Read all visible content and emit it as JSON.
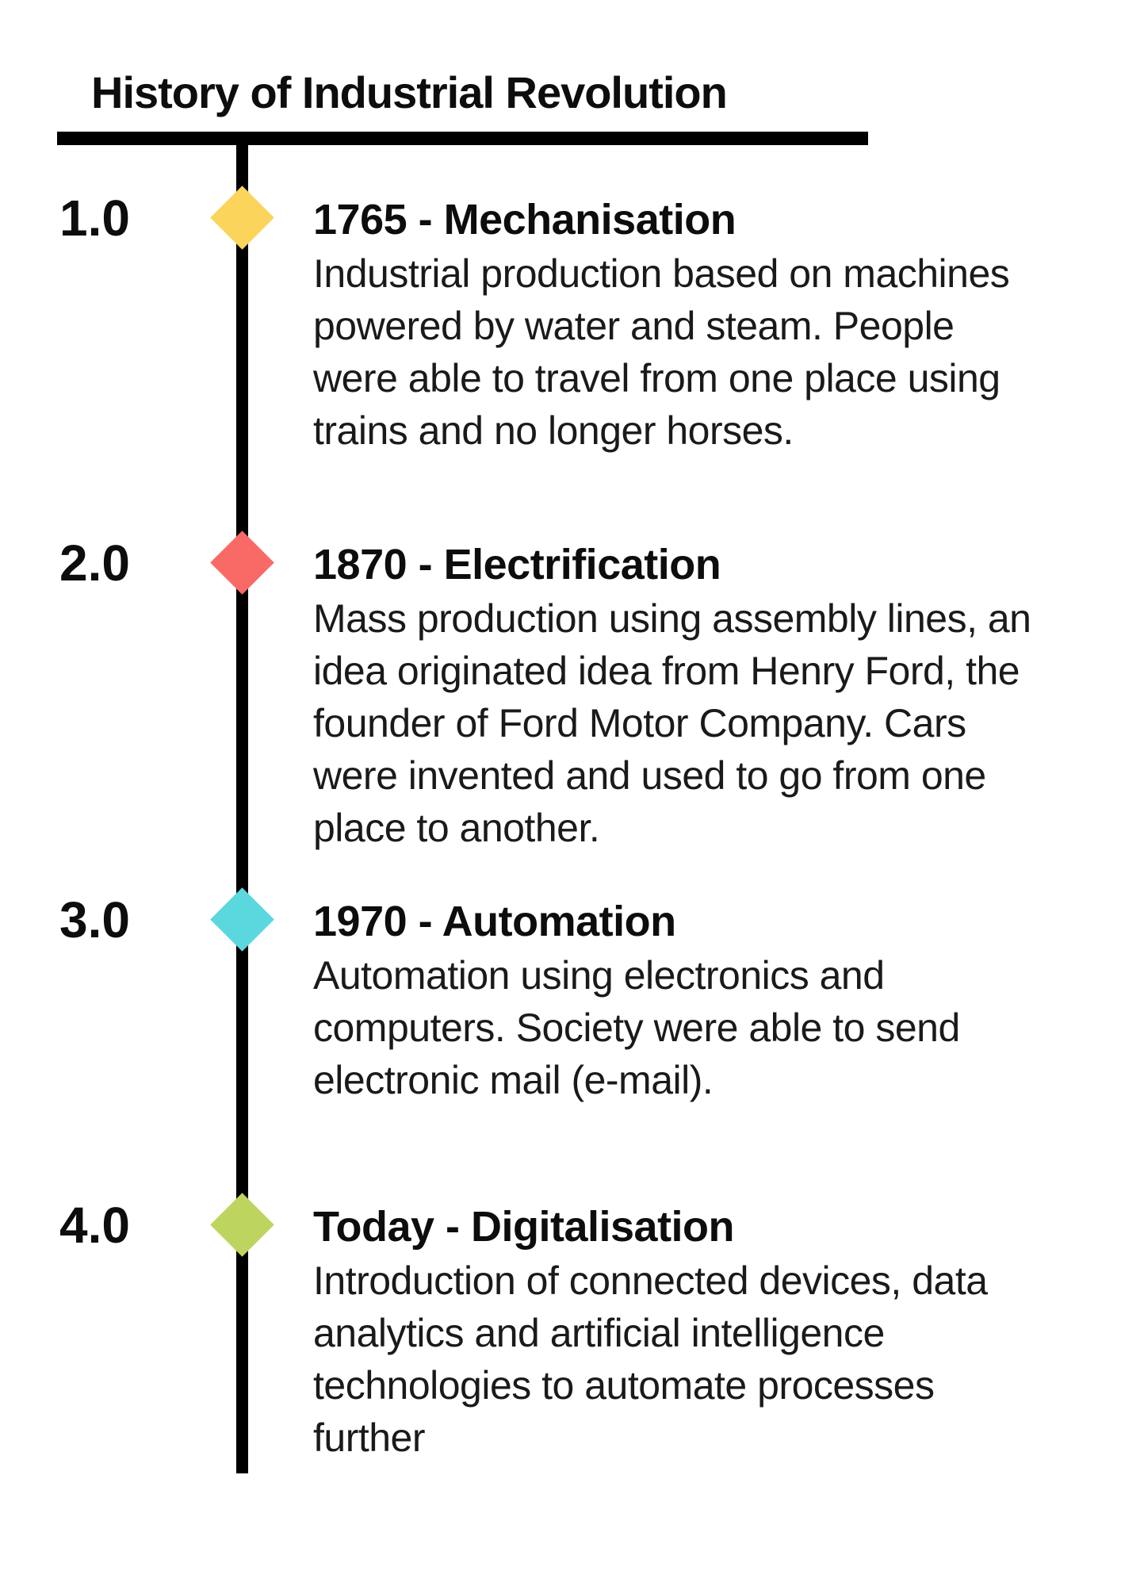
{
  "title": "History of Industrial Revolution",
  "timeline": {
    "line_color": "#000000",
    "sections": [
      {
        "label": "1.0",
        "diamond_color": "#FBD45C",
        "diamond_icon": "diamond-icon",
        "heading": "1765 - Mechanisation",
        "body": "Industrial production based on machines\npowered by water and steam. People\nwere able to travel from one place using\ntrains and no longer horses."
      },
      {
        "label": "2.0",
        "diamond_color": "#F96A66",
        "diamond_icon": "diamond-icon",
        "heading": "1870 - Electrification",
        "body": "Mass production using assembly lines, an\nidea originated idea from Henry Ford, the\nfounder of Ford Motor Company. Cars\nwere invented and used to go from one\nplace to another."
      },
      {
        "label": "3.0",
        "diamond_color": "#5BD8DE",
        "diamond_icon": "diamond-icon",
        "heading": "1970 - Automation",
        "body": "Automation using electronics and\ncomputers. Society were able to send\nelectronic mail (e-mail)."
      },
      {
        "label": "4.0",
        "diamond_color": "#BDD55F",
        "diamond_icon": "diamond-icon",
        "heading": "Today - Digitalisation",
        "body": "Introduction of connected devices, data\nanalytics and artificial intelligence\ntechnologies to automate processes\nfurther"
      }
    ]
  }
}
